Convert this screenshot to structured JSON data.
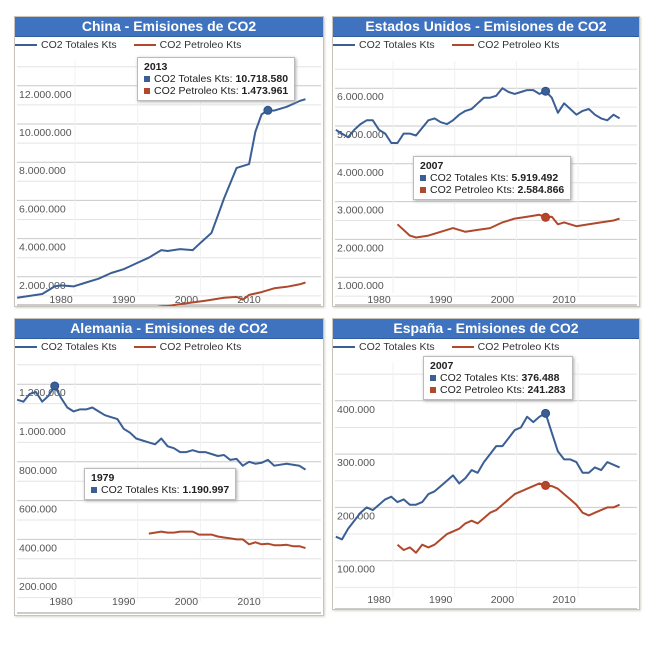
{
  "colors": {
    "title_bg": "#3f73bf",
    "totales": "#3b5f95",
    "petroleo": "#b0492c",
    "grid": "#d0d0d0"
  },
  "chart_data": [
    {
      "type": "line",
      "title": "China - Emisiones de CO2",
      "legend": [
        "CO2 Totales Kts",
        "CO2 Petroleo Kts"
      ],
      "legend_position": "top-left",
      "xlabel": "",
      "ylabel": "",
      "xlim": [
        1973,
        2020
      ],
      "ylim": [
        0,
        13000000
      ],
      "xticks": [
        "1980",
        "1990",
        "2000",
        "2010"
      ],
      "yticks": [
        "2.000.000",
        "4.000.000",
        "6.000.000",
        "8.000.000",
        "10.000.000",
        "12.000.000"
      ],
      "grid": true,
      "series": [
        {
          "name": "CO2 Totales Kts",
          "x": [
            1973,
            1975,
            1977,
            1979,
            1980,
            1982,
            1984,
            1986,
            1988,
            1990,
            1992,
            1994,
            1996,
            1997,
            1999,
            2001,
            2002,
            2004,
            2005,
            2006,
            2008,
            2010,
            2011,
            2012,
            2013,
            2014,
            2016,
            2018,
            2019
          ],
          "values": [
            900000,
            1000000,
            1100000,
            1500000,
            1550000,
            1500000,
            1700000,
            1900000,
            2200000,
            2400000,
            2700000,
            3000000,
            3400000,
            3350000,
            3450000,
            3400000,
            3700000,
            4300000,
            5200000,
            6100000,
            7700000,
            7900000,
            9600000,
            10500000,
            10718580,
            10700000,
            10900000,
            11200000,
            11300000
          ]
        },
        {
          "name": "CO2 Petroleo Kts",
          "x": [
            1983,
            1987,
            1990,
            1994,
            1997,
            2000,
            2003,
            2006,
            2008,
            2009,
            2010,
            2012,
            2014,
            2016,
            2018,
            2019
          ],
          "values": [
            250000,
            270000,
            330000,
            380000,
            470000,
            620000,
            750000,
            900000,
            950000,
            800000,
            1050000,
            1200000,
            1400000,
            1473961,
            1600000,
            1700000
          ]
        }
      ],
      "tooltip": {
        "year": "2013",
        "rows": [
          {
            "label": "CO2 Totales Kts:",
            "value": "10.718.580"
          },
          {
            "label": "CO2 Petroleo Kts:",
            "value": "1.473.961"
          }
        ]
      },
      "highlight_year": 2013
    },
    {
      "type": "line",
      "title": "Estados Unidos - Emisiones de CO2",
      "legend": [
        "CO2 Totales Kts",
        "CO2 Petroleo Kts"
      ],
      "legend_position": "top-left",
      "xlabel": "",
      "ylabel": "",
      "xlim": [
        1973,
        2020
      ],
      "ylim": [
        0,
        6600000
      ],
      "xticks": [
        "1980",
        "1990",
        "2000",
        "2010"
      ],
      "yticks": [
        "1.000.000",
        "2.000.000",
        "3.000.000",
        "4.000.000",
        "5.000.000",
        "6.000.000"
      ],
      "grid": true,
      "series": [
        {
          "name": "CO2 Totales Kts",
          "x": [
            1973,
            1974,
            1975,
            1976,
            1977,
            1978,
            1979,
            1980,
            1981,
            1982,
            1983,
            1984,
            1985,
            1986,
            1987,
            1988,
            1989,
            1990,
            1991,
            1992,
            1993,
            1994,
            1995,
            1996,
            1997,
            1998,
            1999,
            2000,
            2001,
            2002,
            2003,
            2004,
            2005,
            2006,
            2007,
            2008,
            2009,
            2010,
            2011,
            2012,
            2013,
            2014,
            2015,
            2016,
            2017,
            2018,
            2019
          ],
          "values": [
            4900000,
            4800000,
            4700000,
            4900000,
            5050000,
            5150000,
            5150000,
            4900000,
            4800000,
            4550000,
            4550000,
            4800000,
            4800000,
            4750000,
            4950000,
            5150000,
            5200000,
            5100000,
            5050000,
            5150000,
            5300000,
            5400000,
            5450000,
            5600000,
            5750000,
            5750000,
            5800000,
            6000000,
            5900000,
            5850000,
            5900000,
            5950000,
            5950000,
            5850000,
            5919492,
            5750000,
            5350000,
            5600000,
            5450000,
            5300000,
            5400000,
            5450000,
            5300000,
            5200000,
            5150000,
            5300000,
            5200000
          ]
        },
        {
          "name": "CO2 Petroleo Kts",
          "x": [
            1983,
            1985,
            1986,
            1988,
            1990,
            1992,
            1994,
            1996,
            1998,
            2000,
            2002,
            2004,
            2006,
            2007,
            2008,
            2009,
            2010,
            2012,
            2014,
            2016,
            2018,
            2019
          ],
          "values": [
            2400000,
            2100000,
            2050000,
            2100000,
            2200000,
            2300000,
            2200000,
            2250000,
            2300000,
            2450000,
            2550000,
            2600000,
            2650000,
            2584866,
            2600000,
            2400000,
            2450000,
            2350000,
            2400000,
            2450000,
            2500000,
            2550000
          ]
        }
      ],
      "tooltip": {
        "year": "2007",
        "rows": [
          {
            "label": "CO2 Totales Kts:",
            "value": "5.919.492"
          },
          {
            "label": "CO2 Petroleo Kts:",
            "value": "2.584.866"
          }
        ]
      },
      "highlight_year": 2007
    },
    {
      "type": "line",
      "title": "Alemania - Emisiones de CO2",
      "legend": [
        "CO2 Totales Kts",
        "CO2 Petroleo Kts"
      ],
      "legend_position": "top-left",
      "xlabel": "",
      "ylabel": "",
      "xlim": [
        1973,
        2020
      ],
      "ylim": [
        100000,
        1400000
      ],
      "xticks": [
        "1980",
        "1990",
        "2000",
        "2010"
      ],
      "yticks": [
        "200.000",
        "400.000",
        "600.000",
        "800.000",
        "1.000.000",
        "1.200.000"
      ],
      "grid": true,
      "series": [
        {
          "name": "CO2 Totales Kts",
          "x": [
            1973,
            1974,
            1975,
            1976,
            1977,
            1978,
            1979,
            1980,
            1981,
            1982,
            1983,
            1984,
            1985,
            1986,
            1987,
            1988,
            1989,
            1990,
            1991,
            1992,
            1993,
            1994,
            1995,
            1996,
            1997,
            1998,
            1999,
            2000,
            2001,
            2002,
            2003,
            2004,
            2005,
            2006,
            2007,
            2008,
            2009,
            2010,
            2011,
            2012,
            2013,
            2014,
            2015,
            2016,
            2017,
            2018,
            2019
          ],
          "values": [
            1120000,
            1110000,
            1150000,
            1160000,
            1110000,
            1140000,
            1190997,
            1130000,
            1080000,
            1060000,
            1070000,
            1070000,
            1080000,
            1060000,
            1040000,
            1030000,
            1020000,
            970000,
            950000,
            920000,
            910000,
            900000,
            890000,
            920000,
            880000,
            870000,
            850000,
            850000,
            860000,
            850000,
            850000,
            840000,
            830000,
            835000,
            810000,
            815000,
            780000,
            800000,
            790000,
            795000,
            810000,
            780000,
            785000,
            790000,
            785000,
            780000,
            760000
          ]
        },
        {
          "name": "CO2 Petroleo Kts",
          "x": [
            1994,
            1995,
            1996,
            1997,
            1998,
            1999,
            2000,
            2001,
            2002,
            2003,
            2004,
            2005,
            2006,
            2007,
            2008,
            2009,
            2010,
            2011,
            2012,
            2013,
            2014,
            2015,
            2016,
            2017,
            2018,
            2019
          ],
          "values": [
            430000,
            435000,
            440000,
            435000,
            435000,
            440000,
            440000,
            440000,
            425000,
            425000,
            425000,
            415000,
            410000,
            405000,
            400000,
            400000,
            375000,
            385000,
            375000,
            378000,
            370000,
            370000,
            372000,
            365000,
            365000,
            355000
          ]
        }
      ],
      "tooltip": {
        "year": "1979",
        "rows": [
          {
            "label": "CO2 Totales Kts:",
            "value": "1.190.997"
          }
        ]
      },
      "highlight_year": 1979
    },
    {
      "type": "line",
      "title": "España - Emisiones de CO2",
      "legend": [
        "CO2 Totales Kts",
        "CO2 Petroleo Kts"
      ],
      "legend_position": "top-left",
      "xlabel": "",
      "ylabel": "",
      "xlim": [
        1973,
        2020
      ],
      "ylim": [
        0,
        460000
      ],
      "xticks": [
        "1980",
        "1990",
        "2000",
        "2010"
      ],
      "yticks": [
        "100.000",
        "200.000",
        "300.000",
        "400.000"
      ],
      "grid": true,
      "series": [
        {
          "name": "CO2 Totales Kts",
          "x": [
            1973,
            1974,
            1975,
            1976,
            1977,
            1978,
            1979,
            1980,
            1981,
            1982,
            1983,
            1984,
            1985,
            1986,
            1987,
            1988,
            1989,
            1990,
            1991,
            1992,
            1993,
            1994,
            1995,
            1996,
            1997,
            1998,
            1999,
            2000,
            2001,
            2002,
            2003,
            2004,
            2005,
            2006,
            2007,
            2008,
            2009,
            2010,
            2011,
            2012,
            2013,
            2014,
            2015,
            2016,
            2017,
            2018,
            2019
          ],
          "values": [
            145000,
            140000,
            160000,
            175000,
            190000,
            200000,
            195000,
            205000,
            215000,
            220000,
            210000,
            215000,
            205000,
            205000,
            210000,
            225000,
            230000,
            240000,
            250000,
            260000,
            245000,
            255000,
            270000,
            265000,
            285000,
            300000,
            315000,
            315000,
            330000,
            345000,
            350000,
            370000,
            360000,
            370000,
            376488,
            340000,
            305000,
            290000,
            290000,
            285000,
            265000,
            265000,
            275000,
            270000,
            285000,
            280000,
            275000
          ]
        },
        {
          "name": "CO2 Petroleo Kts",
          "x": [
            1983,
            1984,
            1985,
            1986,
            1987,
            1988,
            1989,
            1990,
            1991,
            1992,
            1993,
            1994,
            1995,
            1996,
            1997,
            1998,
            1999,
            2000,
            2001,
            2002,
            2003,
            2004,
            2005,
            2006,
            2007,
            2008,
            2009,
            2010,
            2011,
            2012,
            2013,
            2014,
            2015,
            2016,
            2017,
            2018,
            2019
          ],
          "values": [
            130000,
            120000,
            125000,
            115000,
            130000,
            125000,
            130000,
            140000,
            150000,
            155000,
            160000,
            170000,
            175000,
            170000,
            180000,
            190000,
            195000,
            205000,
            215000,
            225000,
            230000,
            235000,
            240000,
            245000,
            241283,
            240000,
            235000,
            225000,
            215000,
            205000,
            190000,
            185000,
            190000,
            195000,
            200000,
            200000,
            205000
          ]
        }
      ],
      "tooltip": {
        "year": "2007",
        "rows": [
          {
            "label": "CO2 Totales Kts:",
            "value": "376.488"
          },
          {
            "label": "CO2 Petroleo Kts:",
            "value": "241.283"
          }
        ]
      },
      "highlight_year": 2007
    }
  ]
}
